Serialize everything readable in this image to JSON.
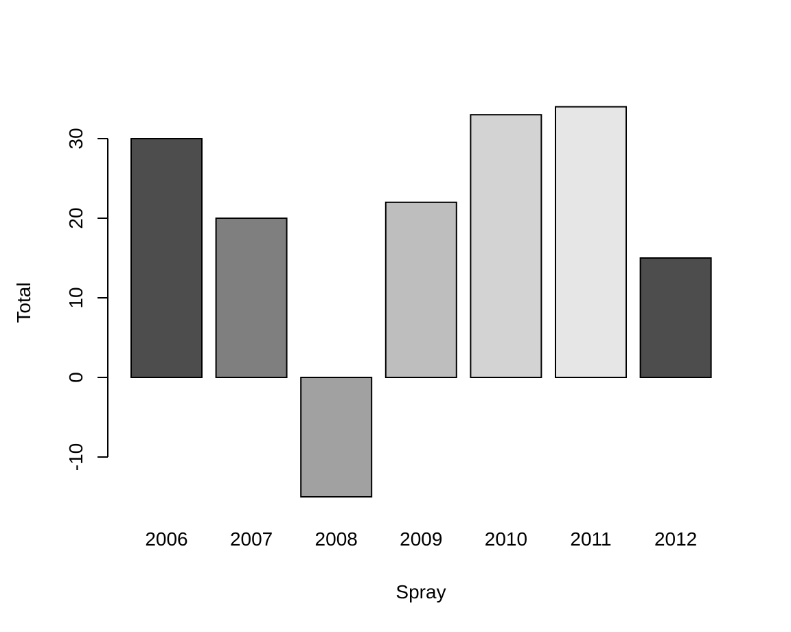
{
  "chart_data": {
    "type": "bar",
    "categories": [
      "2006",
      "2007",
      "2008",
      "2009",
      "2010",
      "2011",
      "2012"
    ],
    "values": [
      30,
      20,
      -15,
      22,
      33,
      34,
      15
    ],
    "bar_colors": [
      "#4d4d4d",
      "#7f7f7f",
      "#a1a1a1",
      "#bebebe",
      "#d3d3d3",
      "#e6e6e6",
      "#4d4d4d"
    ],
    "title": "",
    "xlabel": "Spray",
    "ylabel": "Total",
    "y_ticks": [
      -10,
      0,
      10,
      20,
      30
    ],
    "y_tick_labels": [
      "-10",
      "0",
      "10",
      "20",
      "30"
    ],
    "ylim": [
      -15,
      34
    ],
    "grid": false,
    "legend": "none"
  }
}
